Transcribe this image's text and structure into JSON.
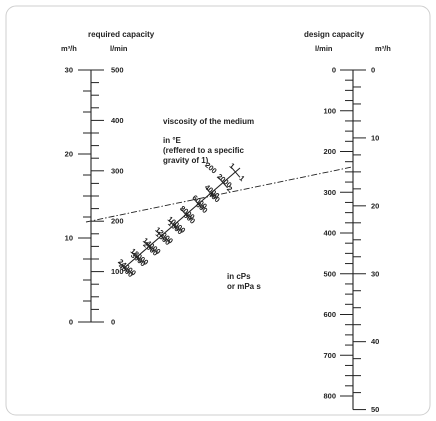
{
  "left_scale": {
    "heading": "required capacity",
    "unit_outer": "m³/h",
    "unit_inner": "l/min",
    "m3h_labels": [
      "30",
      "20",
      "10",
      "0"
    ],
    "lmin_labels": [
      "500",
      "400",
      "300",
      "200",
      "100",
      "0"
    ]
  },
  "right_scale": {
    "heading": "design capacity",
    "unit_inner": "l/min",
    "unit_outer": "m³/h",
    "lmin_labels": [
      "0",
      "100",
      "200",
      "300",
      "400",
      "500",
      "600",
      "700",
      "800"
    ],
    "m3h_labels": [
      "0",
      "10",
      "20",
      "30",
      "40",
      "50"
    ]
  },
  "viscosity": {
    "title": "viscosity of the medium",
    "engler_unit_lines": [
      "in °E",
      "(reffered to a specific",
      "gravity of 1)"
    ],
    "cps_unit_lines": [
      "in cPs",
      "or mPa s"
    ],
    "engler_values": [
      "1",
      "2",
      "400",
      "600",
      "800",
      "1000",
      "1500",
      "2000",
      "3000",
      "4000"
    ],
    "engler_values_alt": [
      "200"
    ],
    "cps_values": [
      "1",
      "2000",
      "4000",
      "6000",
      "8000",
      "10000",
      "12000",
      "14000",
      "18000",
      "24000"
    ]
  },
  "colors": {
    "ink": "#222222",
    "frame": "#cfcfcf"
  }
}
